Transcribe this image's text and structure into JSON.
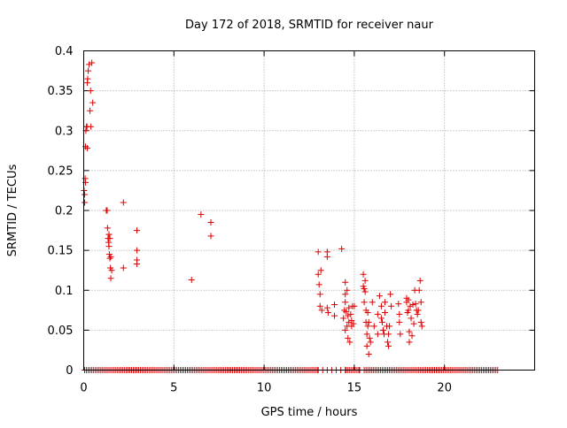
{
  "chart_data": {
    "type": "scatter",
    "title": "Day 172 of 2018, SRMTID for receiver naur",
    "xlabel": "GPS time / hours",
    "ylabel": "SRMTID / TECUs",
    "xlim": [
      0,
      25
    ],
    "ylim": [
      0,
      0.4
    ],
    "x_ticks": [
      0,
      5,
      10,
      15,
      20
    ],
    "x_tick_labels": [
      "0",
      "5",
      "10",
      "15",
      "20"
    ],
    "y_ticks": [
      0,
      0.05,
      0.1,
      0.15,
      0.2,
      0.25,
      0.3,
      0.35,
      0.4
    ],
    "y_tick_labels": [
      "0",
      "0.05",
      "0.1",
      "0.15",
      "0.2",
      "0.25",
      "0.3",
      "0.35",
      "0.4"
    ],
    "grid": true,
    "marker": "+",
    "color": "#dd0000",
    "zero_baseline": {
      "x_start": 0.05,
      "x_end": 22.95,
      "step": 0.1,
      "gaps": [
        [
          13.0,
          14.5
        ],
        [
          15.3,
          15.6
        ]
      ]
    },
    "points": [
      [
        0.02,
        0.225
      ],
      [
        0.05,
        0.22
      ],
      [
        0.05,
        0.21
      ],
      [
        0.08,
        0.24
      ],
      [
        0.1,
        0.235
      ],
      [
        0.12,
        0.3
      ],
      [
        0.1,
        0.28
      ],
      [
        0.15,
        0.305
      ],
      [
        0.18,
        0.305
      ],
      [
        0.2,
        0.36
      ],
      [
        0.22,
        0.365
      ],
      [
        0.25,
        0.375
      ],
      [
        0.2,
        0.278
      ],
      [
        0.3,
        0.383
      ],
      [
        0.35,
        0.325
      ],
      [
        0.38,
        0.35
      ],
      [
        0.4,
        0.305
      ],
      [
        0.45,
        0.385
      ],
      [
        0.5,
        0.335
      ],
      [
        1.25,
        0.2
      ],
      [
        1.3,
        0.2
      ],
      [
        1.32,
        0.178
      ],
      [
        1.35,
        0.165
      ],
      [
        1.38,
        0.16
      ],
      [
        1.4,
        0.17
      ],
      [
        1.4,
        0.155
      ],
      [
        1.42,
        0.145
      ],
      [
        1.45,
        0.14
      ],
      [
        1.45,
        0.165
      ],
      [
        1.48,
        0.128
      ],
      [
        1.5,
        0.115
      ],
      [
        1.5,
        0.142
      ],
      [
        1.55,
        0.125
      ],
      [
        1.4,
        0.17
      ],
      [
        2.2,
        0.21
      ],
      [
        2.2,
        0.128
      ],
      [
        2.95,
        0.175
      ],
      [
        2.95,
        0.15
      ],
      [
        2.95,
        0.138
      ],
      [
        2.95,
        0.133
      ],
      [
        5.98,
        0.113
      ],
      [
        6.5,
        0.195
      ],
      [
        7.05,
        0.185
      ],
      [
        7.05,
        0.168
      ],
      [
        13.0,
        0.148
      ],
      [
        13.0,
        0.12
      ],
      [
        13.05,
        0.107
      ],
      [
        13.1,
        0.095
      ],
      [
        13.1,
        0.08
      ],
      [
        13.15,
        0.125
      ],
      [
        13.2,
        0.075
      ],
      [
        13.5,
        0.148
      ],
      [
        13.5,
        0.142
      ],
      [
        13.55,
        0.072
      ],
      [
        13.5,
        0.078
      ],
      [
        13.9,
        0.082
      ],
      [
        13.9,
        0.068
      ],
      [
        14.3,
        0.152
      ],
      [
        14.4,
        0.065
      ],
      [
        14.45,
        0.075
      ],
      [
        14.5,
        0.11
      ],
      [
        14.5,
        0.095
      ],
      [
        14.5,
        0.085
      ],
      [
        14.5,
        0.05
      ],
      [
        14.55,
        0.073
      ],
      [
        14.6,
        0.1
      ],
      [
        14.6,
        0.055
      ],
      [
        14.65,
        0.068
      ],
      [
        14.65,
        0.04
      ],
      [
        14.7,
        0.078
      ],
      [
        14.7,
        0.06
      ],
      [
        14.75,
        0.035
      ],
      [
        14.8,
        0.07
      ],
      [
        14.85,
        0.055
      ],
      [
        14.85,
        0.062
      ],
      [
        14.9,
        0.08
      ],
      [
        14.95,
        0.058
      ],
      [
        15.0,
        0.08
      ],
      [
        15.5,
        0.12
      ],
      [
        15.5,
        0.105
      ],
      [
        15.55,
        0.102
      ],
      [
        15.55,
        0.085
      ],
      [
        15.6,
        0.112
      ],
      [
        15.6,
        0.098
      ],
      [
        15.65,
        0.075
      ],
      [
        15.65,
        0.06
      ],
      [
        15.7,
        0.045
      ],
      [
        15.7,
        0.03
      ],
      [
        15.75,
        0.072
      ],
      [
        15.75,
        0.055
      ],
      [
        15.8,
        0.02
      ],
      [
        15.8,
        0.06
      ],
      [
        15.85,
        0.04
      ],
      [
        15.9,
        0.035
      ],
      [
        16.0,
        0.085
      ],
      [
        16.1,
        0.055
      ],
      [
        16.3,
        0.07
      ],
      [
        16.3,
        0.045
      ],
      [
        16.4,
        0.093
      ],
      [
        16.5,
        0.08
      ],
      [
        16.5,
        0.065
      ],
      [
        16.55,
        0.06
      ],
      [
        16.6,
        0.05
      ],
      [
        16.65,
        0.045
      ],
      [
        16.7,
        0.072
      ],
      [
        16.7,
        0.085
      ],
      [
        16.8,
        0.055
      ],
      [
        16.85,
        0.035
      ],
      [
        16.9,
        0.03
      ],
      [
        16.9,
        0.045
      ],
      [
        16.95,
        0.055
      ],
      [
        17.0,
        0.095
      ],
      [
        17.05,
        0.08
      ],
      [
        17.45,
        0.083
      ],
      [
        17.5,
        0.07
      ],
      [
        17.5,
        0.06
      ],
      [
        17.55,
        0.045
      ],
      [
        17.9,
        0.09
      ],
      [
        17.9,
        0.085
      ],
      [
        17.95,
        0.072
      ],
      [
        18.0,
        0.088
      ],
      [
        18.0,
        0.075
      ],
      [
        18.05,
        0.048
      ],
      [
        18.05,
        0.035
      ],
      [
        18.1,
        0.08
      ],
      [
        18.15,
        0.065
      ],
      [
        18.2,
        0.043
      ],
      [
        18.25,
        0.082
      ],
      [
        18.3,
        0.058
      ],
      [
        18.35,
        0.1
      ],
      [
        18.4,
        0.083
      ],
      [
        18.45,
        0.075
      ],
      [
        18.5,
        0.07
      ],
      [
        18.55,
        0.075
      ],
      [
        18.6,
        0.1
      ],
      [
        18.65,
        0.112
      ],
      [
        18.7,
        0.085
      ],
      [
        18.7,
        0.06
      ],
      [
        18.75,
        0.055
      ]
    ]
  }
}
